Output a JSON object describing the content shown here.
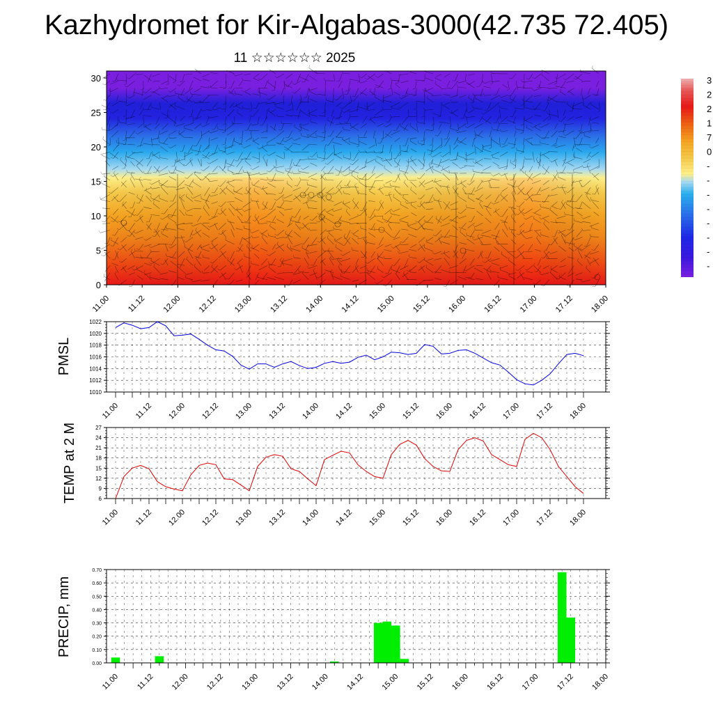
{
  "title": "Kazhydromet for Kir-Algabas-3000(42.735 72.405)",
  "subtitle": "11 ☆☆☆☆☆☆ 2025",
  "time_labels": [
    "11.00",
    "11.12",
    "12.00",
    "12.12",
    "13.00",
    "13.12",
    "14.00",
    "14.12",
    "15.00",
    "15.12",
    "16.00",
    "16.12",
    "17.00",
    "17.12",
    "18.00"
  ],
  "colorbar_labels": [
    "3",
    "2",
    "2",
    "1",
    "7",
    "0",
    "-",
    "-",
    "-",
    "-",
    "-",
    "-",
    "-",
    "-"
  ],
  "colors": {
    "pmsl_line": "#0000e0",
    "temp_line": "#e00000",
    "precip_bar": "#00ee00"
  },
  "chart_data": [
    {
      "type": "heatmap",
      "title": "",
      "xlabel": "",
      "ylabel": "",
      "ylim": [
        0,
        30
      ],
      "y_ticks": [
        0,
        5,
        10,
        15,
        20,
        25,
        30
      ],
      "x_ticks": [
        "11.00",
        "11.12",
        "12.00",
        "12.12",
        "13.00",
        "13.12",
        "14.00",
        "14.12",
        "15.00",
        "15.12",
        "16.00",
        "16.12",
        "17.00",
        "17.12",
        "18.00"
      ],
      "colormap": [
        "#7a1fe0",
        "#2222e0",
        "#2b6be6",
        "#2aa9ee",
        "#a8daf2",
        "#fff08a",
        "#f5c94a",
        "#f5a623",
        "#f08519",
        "#ee4a14",
        "#e81818"
      ]
    },
    {
      "type": "line",
      "ylabel": "PMSL",
      "ylim": [
        1010,
        1022
      ],
      "y_ticks": [
        1010,
        1012,
        1014,
        1016,
        1018,
        1020,
        1022
      ],
      "x_ticks": [
        "11.00",
        "11.12",
        "12.00",
        "12.12",
        "13.00",
        "13.12",
        "14.00",
        "14.12",
        "15.00",
        "15.12",
        "16.00",
        "16.12",
        "17.00",
        "17.12",
        "18.00"
      ],
      "x": [
        0,
        3,
        6,
        9,
        12,
        15,
        18,
        21,
        24,
        27,
        30,
        33,
        36,
        39,
        42,
        45,
        48,
        51,
        54,
        57,
        60,
        63,
        66,
        69,
        72,
        75,
        78,
        81,
        84,
        87,
        90,
        93,
        96,
        99,
        102,
        105,
        108,
        111,
        114,
        117,
        120,
        123,
        126,
        129,
        132,
        135,
        138,
        141,
        144,
        147,
        150,
        153,
        156,
        159,
        162,
        165,
        168
      ],
      "values": [
        1021.0,
        1021.8,
        1021.4,
        1020.8,
        1021.0,
        1022.0,
        1021.3,
        1019.6,
        1019.7,
        1019.9,
        1019.0,
        1018.0,
        1017.2,
        1017.0,
        1016.1,
        1014.6,
        1013.9,
        1014.8,
        1014.8,
        1014.2,
        1014.8,
        1015.2,
        1014.5,
        1014.0,
        1014.2,
        1014.9,
        1015.2,
        1014.9,
        1015.1,
        1015.9,
        1016.3,
        1015.5,
        1016.0,
        1016.8,
        1016.7,
        1016.4,
        1016.6,
        1018.1,
        1017.8,
        1016.5,
        1016.6,
        1017.1,
        1017.2,
        1016.6,
        1015.8,
        1015.0,
        1014.6,
        1013.4,
        1012.1,
        1011.4,
        1011.2,
        1012.0,
        1013.1,
        1014.8,
        1016.4,
        1016.6,
        1016.2
      ]
    },
    {
      "type": "line",
      "ylabel": "TEMP at 2 M",
      "ylim": [
        6,
        27
      ],
      "y_ticks": [
        6,
        9,
        12,
        15,
        18,
        21,
        24,
        27
      ],
      "x_ticks": [
        "11.00",
        "11.12",
        "12.00",
        "12.12",
        "13.00",
        "13.12",
        "14.00",
        "14.12",
        "15.00",
        "15.12",
        "16.00",
        "16.12",
        "17.00",
        "17.12",
        "18.00"
      ],
      "x": [
        0,
        3,
        6,
        9,
        12,
        15,
        18,
        21,
        24,
        27,
        30,
        33,
        36,
        39,
        42,
        45,
        48,
        51,
        54,
        57,
        60,
        63,
        66,
        69,
        72,
        75,
        78,
        81,
        84,
        87,
        90,
        93,
        96,
        99,
        102,
        105,
        108,
        111,
        114,
        117,
        120,
        123,
        126,
        129,
        132,
        135,
        138,
        141,
        144,
        147,
        150,
        153,
        156,
        159,
        162,
        165,
        168
      ],
      "values": [
        6.0,
        12.5,
        15.0,
        15.8,
        14.8,
        11.0,
        9.5,
        8.8,
        8.3,
        13.0,
        15.8,
        16.5,
        16.0,
        11.8,
        11.6,
        10.0,
        8.3,
        15.5,
        18.2,
        19.0,
        18.5,
        14.8,
        14.0,
        11.8,
        9.8,
        17.5,
        18.8,
        20.0,
        19.5,
        16.0,
        14.0,
        12.5,
        12.0,
        19.0,
        22.0,
        23.2,
        21.8,
        17.8,
        15.5,
        14.2,
        14.0,
        20.5,
        23.2,
        24.0,
        23.0,
        19.0,
        17.5,
        16.0,
        15.5,
        23.5,
        25.3,
        24.0,
        20.5,
        15.5,
        12.5,
        9.5,
        7.5
      ]
    },
    {
      "type": "bar",
      "ylabel": "PRECIP, mm",
      "ylim": [
        0,
        0.7
      ],
      "y_ticks": [
        "0.00",
        "0.10",
        "0.20",
        "0.30",
        "0.40",
        "0.50",
        "0.60",
        "0.70"
      ],
      "x_ticks": [
        "11.00",
        "11.12",
        "12.00",
        "12.12",
        "13.00",
        "13.12",
        "14.00",
        "14.12",
        "15.00",
        "15.12",
        "16.00",
        "16.12",
        "17.00",
        "17.12",
        "18.00"
      ],
      "x": [
        0,
        15,
        75,
        90,
        93,
        96,
        99,
        153,
        156
      ],
      "values": [
        0.04,
        0.05,
        0.01,
        0.3,
        0.31,
        0.28,
        0.03,
        0.68,
        0.34
      ]
    }
  ]
}
